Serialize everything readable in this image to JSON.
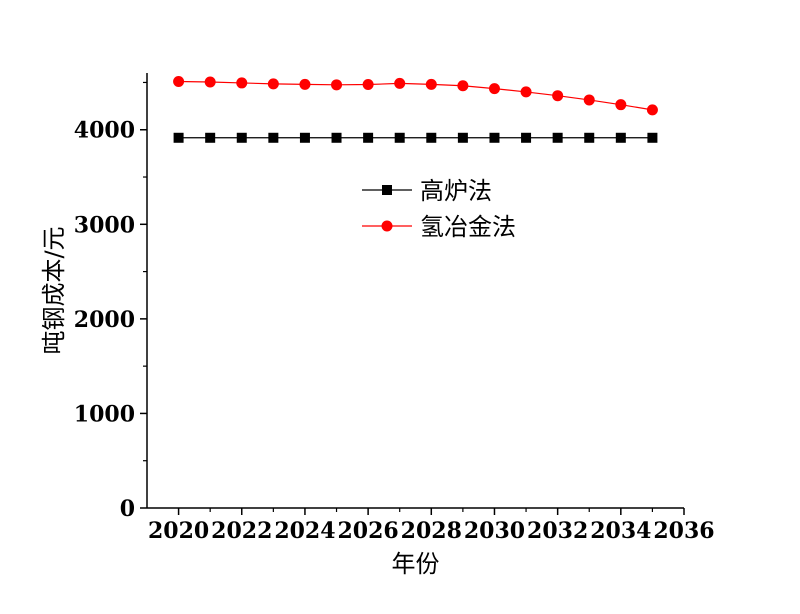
{
  "chart_data": {
    "type": "line",
    "xlabel": "年份",
    "ylabel": "吨钢成本/元",
    "xlim": [
      2019,
      2036
    ],
    "ylim": [
      0,
      4600
    ],
    "xticks": [
      2020,
      2022,
      2024,
      2026,
      2028,
      2030,
      2032,
      2034,
      2036
    ],
    "yticks": [
      0,
      1000,
      2000,
      3000,
      4000
    ],
    "grid": false,
    "legend_position": "center-right",
    "x": [
      2020,
      2021,
      2022,
      2023,
      2024,
      2025,
      2026,
      2027,
      2028,
      2029,
      2030,
      2031,
      2032,
      2033,
      2034,
      2035
    ],
    "series": [
      {
        "name": "高炉法",
        "color": "#000000",
        "marker": "square",
        "values": [
          3915,
          3915,
          3915,
          3915,
          3915,
          3915,
          3915,
          3915,
          3915,
          3915,
          3915,
          3915,
          3915,
          3915,
          3915,
          3915
        ]
      },
      {
        "name": "氢冶金法",
        "color": "#ff0000",
        "marker": "circle",
        "values": [
          4510,
          4505,
          4495,
          4485,
          4480,
          4475,
          4478,
          4490,
          4480,
          4465,
          4435,
          4400,
          4360,
          4315,
          4265,
          4210
        ]
      }
    ]
  }
}
